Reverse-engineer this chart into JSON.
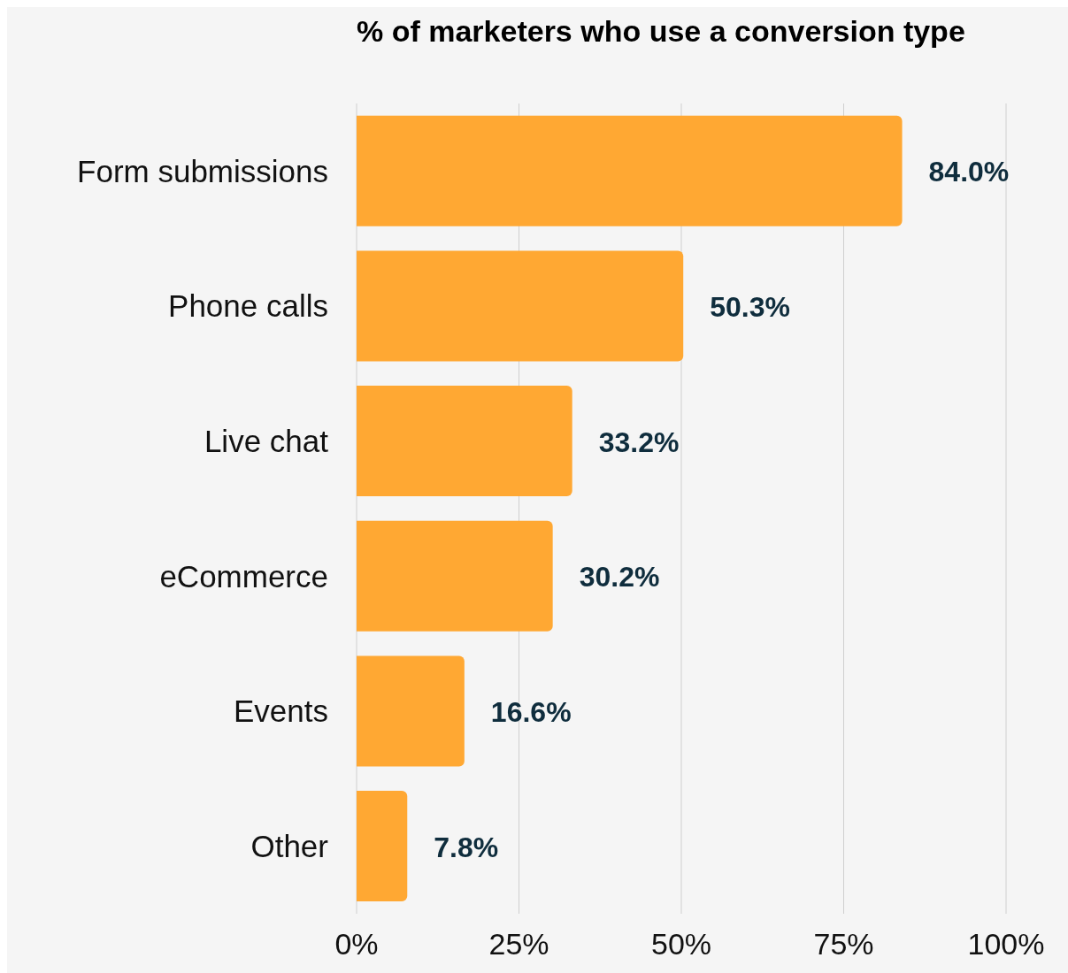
{
  "chart_data": {
    "type": "bar",
    "orientation": "horizontal",
    "title": "% of marketers who use a conversion type",
    "categories": [
      "Form submissions",
      "Phone calls",
      "Live chat",
      "eCommerce",
      "Events",
      "Other"
    ],
    "values": [
      84.0,
      50.3,
      33.2,
      30.2,
      16.6,
      7.8
    ],
    "value_labels": [
      "84.0%",
      "50.3%",
      "33.2%",
      "30.2%",
      "16.6%",
      "7.8%"
    ],
    "color": "#ffa833",
    "xlim": [
      0,
      100
    ],
    "xticks": [
      {
        "value": 0,
        "label": "0%"
      },
      {
        "value": 25,
        "label": "25%"
      },
      {
        "value": 50,
        "label": "50%"
      },
      {
        "value": 75,
        "label": "75%"
      },
      {
        "value": 100,
        "label": "100%"
      }
    ],
    "grid": "x"
  }
}
